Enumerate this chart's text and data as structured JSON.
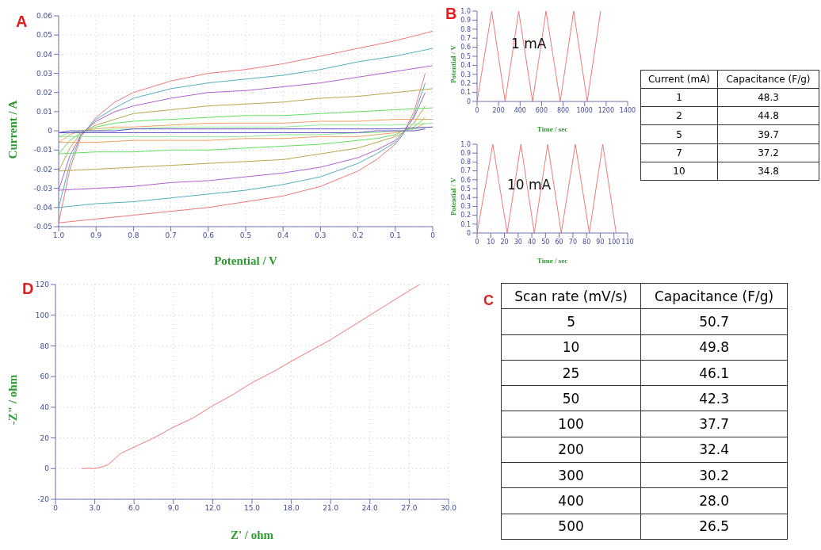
{
  "chart_data": [
    {
      "type": "line",
      "title": "A",
      "xlabel": "Potential / V",
      "ylabel": "Current / A",
      "grid": true,
      "marker": "none",
      "xlim": [
        1.0,
        0
      ],
      "xticks": [
        {
          "value": 1.0,
          "label": "1.0"
        },
        0.9,
        0.8,
        0.7,
        0.6,
        0.5,
        0.4,
        0.3,
        0.2,
        0.1,
        0
      ],
      "ylim": [
        -0.05,
        0.06
      ],
      "yticks": [
        -0.05,
        -0.04,
        -0.03,
        -0.02,
        -0.01,
        0,
        0.01,
        0.02,
        0.03,
        0.04,
        0.05,
        0.06
      ],
      "series": [
        {
          "color": "#f07878",
          "x": [
            1.0,
            0.97,
            0.94,
            0.9,
            0.85,
            0.8,
            0.7,
            0.6,
            0.5,
            0.4,
            0.3,
            0.2,
            0.1,
            0.0
          ],
          "values": [
            -0.048,
            -0.02,
            -0.003,
            0.007,
            0.015,
            0.02,
            0.026,
            0.03,
            0.032,
            0.035,
            0.039,
            0.043,
            0.047,
            0.052
          ]
        },
        {
          "color": "#f07878",
          "x": [
            0.02,
            0.05,
            0.08,
            0.1,
            0.15,
            0.2,
            0.3,
            0.4,
            0.5,
            0.6,
            0.7,
            0.8,
            0.9,
            1.0
          ],
          "values": [
            0.03,
            0.01,
            -0.002,
            -0.007,
            -0.015,
            -0.021,
            -0.029,
            -0.034,
            -0.037,
            -0.04,
            -0.042,
            -0.044,
            -0.046,
            -0.048
          ]
        },
        {
          "color": "#50b0c0",
          "x": [
            1.0,
            0.97,
            0.94,
            0.9,
            0.85,
            0.8,
            0.7,
            0.6,
            0.5,
            0.4,
            0.3,
            0.2,
            0.1,
            0.0
          ],
          "values": [
            -0.04,
            -0.017,
            -0.002,
            0.006,
            0.012,
            0.017,
            0.022,
            0.025,
            0.027,
            0.029,
            0.032,
            0.036,
            0.039,
            0.043
          ]
        },
        {
          "color": "#50b0c0",
          "x": [
            0.02,
            0.05,
            0.08,
            0.1,
            0.15,
            0.2,
            0.3,
            0.4,
            0.5,
            0.6,
            0.7,
            0.8,
            0.9,
            1.0
          ],
          "values": [
            0.025,
            0.008,
            -0.002,
            -0.006,
            -0.012,
            -0.017,
            -0.024,
            -0.028,
            -0.031,
            -0.033,
            -0.035,
            -0.037,
            -0.038,
            -0.04
          ]
        },
        {
          "color": "#b060d0",
          "x": [
            1.0,
            0.97,
            0.94,
            0.9,
            0.85,
            0.8,
            0.7,
            0.6,
            0.5,
            0.4,
            0.3,
            0.2,
            0.1,
            0.0
          ],
          "values": [
            -0.031,
            -0.013,
            -0.002,
            0.005,
            0.01,
            0.013,
            0.017,
            0.02,
            0.021,
            0.023,
            0.025,
            0.028,
            0.031,
            0.034
          ]
        },
        {
          "color": "#b060d0",
          "x": [
            0.02,
            0.05,
            0.08,
            0.1,
            0.15,
            0.2,
            0.3,
            0.4,
            0.5,
            0.6,
            0.7,
            0.8,
            0.9,
            1.0
          ],
          "values": [
            0.02,
            0.007,
            -0.001,
            -0.005,
            -0.01,
            -0.014,
            -0.019,
            -0.022,
            -0.024,
            -0.026,
            -0.027,
            -0.029,
            -0.03,
            -0.031
          ]
        },
        {
          "color": "#b8a848",
          "x": [
            1.0,
            0.97,
            0.94,
            0.9,
            0.85,
            0.8,
            0.7,
            0.6,
            0.5,
            0.4,
            0.3,
            0.2,
            0.1,
            0.0
          ],
          "values": [
            -0.021,
            -0.009,
            -0.001,
            0.003,
            0.006,
            0.009,
            0.011,
            0.013,
            0.014,
            0.015,
            0.017,
            0.018,
            0.02,
            0.022
          ]
        },
        {
          "color": "#b8a848",
          "x": [
            0.02,
            0.05,
            0.08,
            0.1,
            0.15,
            0.2,
            0.3,
            0.4,
            0.5,
            0.6,
            0.7,
            0.8,
            0.9,
            1.0
          ],
          "values": [
            0.013,
            0.004,
            -0.001,
            -0.003,
            -0.006,
            -0.009,
            -0.012,
            -0.015,
            -0.016,
            -0.017,
            -0.018,
            -0.019,
            -0.02,
            -0.021
          ]
        },
        {
          "color": "#60e060",
          "x": [
            1.0,
            0.97,
            0.94,
            0.9,
            0.85,
            0.8,
            0.7,
            0.6,
            0.5,
            0.4,
            0.3,
            0.2,
            0.1,
            0.0
          ],
          "values": [
            -0.012,
            -0.005,
            -0.001,
            0.002,
            0.004,
            0.005,
            0.006,
            0.007,
            0.008,
            0.008,
            0.009,
            0.01,
            0.011,
            0.012
          ]
        },
        {
          "color": "#60e060",
          "x": [
            0.02,
            0.05,
            0.08,
            0.1,
            0.15,
            0.2,
            0.3,
            0.4,
            0.5,
            0.6,
            0.7,
            0.8,
            0.9,
            1.0
          ],
          "values": [
            0.007,
            0.002,
            0.0,
            -0.002,
            -0.004,
            -0.005,
            -0.007,
            -0.008,
            -0.009,
            -0.01,
            -0.01,
            -0.011,
            -0.011,
            -0.012
          ]
        },
        {
          "color": "#f0a060",
          "x": [
            1.0,
            0.97,
            0.94,
            0.9,
            0.85,
            0.8,
            0.7,
            0.6,
            0.5,
            0.4,
            0.3,
            0.2,
            0.1,
            0.0
          ],
          "values": [
            -0.006,
            -0.002,
            0.0,
            0.001,
            0.002,
            0.002,
            0.003,
            0.004,
            0.004,
            0.004,
            0.005,
            0.005,
            0.006,
            0.006
          ]
        },
        {
          "color": "#f0a060",
          "x": [
            0.02,
            0.05,
            0.08,
            0.1,
            0.15,
            0.2,
            0.3,
            0.4,
            0.5,
            0.6,
            0.7,
            0.8,
            0.9,
            1.0
          ],
          "values": [
            0.004,
            0.001,
            0.0,
            -0.001,
            -0.002,
            -0.003,
            -0.003,
            -0.004,
            -0.004,
            -0.005,
            -0.005,
            -0.005,
            -0.006,
            -0.006
          ]
        },
        {
          "color": "#90e890",
          "x": [
            1.0,
            0.97,
            0.94,
            0.9,
            0.85,
            0.8,
            0.7,
            0.6,
            0.5,
            0.4,
            0.3,
            0.2,
            0.1,
            0.0
          ],
          "values": [
            -0.003,
            -0.001,
            0.0,
            0.0,
            0.001,
            0.001,
            0.002,
            0.002,
            0.002,
            0.002,
            0.003,
            0.003,
            0.003,
            0.004
          ]
        },
        {
          "color": "#90e890",
          "x": [
            0.02,
            0.05,
            0.08,
            0.1,
            0.15,
            0.2,
            0.3,
            0.4,
            0.5,
            0.6,
            0.7,
            0.8,
            0.9,
            1.0
          ],
          "values": [
            0.002,
            0.001,
            0.0,
            0.0,
            -0.001,
            -0.001,
            -0.002,
            -0.002,
            -0.003,
            -0.003,
            -0.003,
            -0.003,
            -0.003,
            -0.003
          ]
        },
        {
          "color": "#6050c0",
          "x": [
            1.0,
            0.97,
            0.94,
            0.9,
            0.85,
            0.8,
            0.7,
            0.6,
            0.5,
            0.4,
            0.3,
            0.2,
            0.1,
            0.0
          ],
          "values": [
            -0.001,
            0,
            0,
            0,
            0,
            0.001,
            0.001,
            0.001,
            0.001,
            0.001,
            0.001,
            0.001,
            0.001,
            0.002
          ]
        },
        {
          "color": "#6050c0",
          "x": [
            0.02,
            0.05,
            0.08,
            0.1,
            0.15,
            0.2,
            0.3,
            0.4,
            0.5,
            0.6,
            0.7,
            0.8,
            0.9,
            1.0
          ],
          "values": [
            0.001,
            0,
            0,
            0,
            0,
            -0.001,
            -0.001,
            -0.001,
            -0.001,
            -0.001,
            -0.001,
            -0.001,
            -0.001,
            -0.001
          ]
        }
      ]
    },
    {
      "type": "line",
      "title": "B",
      "xlabel": "Time / sec",
      "ylabel": "Potential / V",
      "marker": "none",
      "annotations": [
        "1 mA"
      ],
      "xlim": [
        0,
        1400
      ],
      "xticks": [
        0,
        200,
        400,
        600,
        800,
        1000,
        1200,
        1400
      ],
      "ylim": [
        0,
        1.0
      ],
      "yticks": [
        0,
        0.1,
        0.2,
        0.3,
        0.4,
        0.5,
        0.6,
        0.7,
        0.8,
        0.9,
        {
          "value": 1.0,
          "label": "1.0"
        }
      ],
      "series": [
        {
          "color": "#f07878",
          "x": [
            0,
            136,
            261,
            387,
            516,
            641,
            773,
            898,
            1024,
            1149
          ],
          "values": [
            0,
            1,
            0,
            1,
            0,
            1,
            0,
            1,
            0,
            1
          ]
        }
      ]
    },
    {
      "type": "line",
      "xlabel": "Time / sec",
      "ylabel": "Potential / V",
      "marker": "none",
      "annotations": [
        "10 mA"
      ],
      "xlim": [
        0,
        110
      ],
      "xticks": [
        0,
        10,
        20,
        30,
        40,
        50,
        60,
        70,
        80,
        90,
        100,
        110
      ],
      "ylim": [
        0,
        1.0
      ],
      "yticks": [
        0,
        0.1,
        0.2,
        0.3,
        0.4,
        0.5,
        0.6,
        0.7,
        0.8,
        0.9,
        {
          "value": 1.0,
          "label": "1.0"
        }
      ],
      "series": [
        {
          "color": "#f07878",
          "x": [
            0,
            11.5,
            22,
            32,
            41.8,
            51.6,
            61.5,
            71.8,
            82,
            91.8,
            101.6
          ],
          "values": [
            0,
            1,
            0,
            1,
            0,
            1,
            0,
            1,
            0,
            1,
            0
          ]
        }
      ]
    },
    {
      "type": "other",
      "annotations": [
        "Current (mA)",
        "Capacitance (F/g)",
        "1",
        "48.3",
        "2",
        "44.8",
        "5",
        "39.7",
        "7",
        "37.2",
        "10",
        "34.8"
      ]
    },
    {
      "type": "line",
      "title": "D",
      "xlabel": "Z' / ohm",
      "ylabel": "-Z\" / ohm",
      "grid": true,
      "marker": "none",
      "xlim": [
        0,
        30
      ],
      "xticks": [
        0,
        {
          "value": 3,
          "label": "3.0"
        },
        {
          "value": 6,
          "label": "6.0"
        },
        {
          "value": 9,
          "label": "9.0"
        },
        {
          "value": 12,
          "label": "12.0"
        },
        {
          "value": 15,
          "label": "15.0"
        },
        {
          "value": 18,
          "label": "18.0"
        },
        {
          "value": 21,
          "label": "21.0"
        },
        {
          "value": 24,
          "label": "24.0"
        },
        {
          "value": 27,
          "label": "27.0"
        },
        {
          "value": 30,
          "label": "30.0"
        }
      ],
      "ylim": [
        -20,
        120
      ],
      "yticks": [
        -20,
        0,
        20,
        40,
        60,
        80,
        100,
        120
      ],
      "series": [
        {
          "color": "#f07878",
          "x": [
            2.0,
            2.5,
            3.0,
            3.5,
            4.0,
            5.0,
            6.0,
            7.5,
            9.0,
            10.5,
            12.0,
            13.5,
            15.0,
            16.8,
            18.0,
            19.5,
            21.0,
            22.5,
            24.0,
            25.5,
            27.0,
            27.8
          ],
          "values": [
            0,
            0.2,
            0,
            1,
            2.5,
            10,
            14,
            20,
            27,
            33,
            41,
            48,
            56,
            64,
            70,
            77,
            84,
            92,
            100,
            108,
            116,
            120
          ]
        }
      ]
    },
    {
      "type": "other",
      "title": "C",
      "annotations": [
        "Scan rate (mV/s)",
        "Capacitance (F/g)",
        "5",
        "50.7",
        "10",
        "49.8",
        "25",
        "46.1",
        "50",
        "42.3",
        "100",
        "37.7",
        "200",
        "32.4",
        "300",
        "30.2",
        "400",
        "28.0",
        "500",
        "26.5"
      ]
    }
  ]
}
